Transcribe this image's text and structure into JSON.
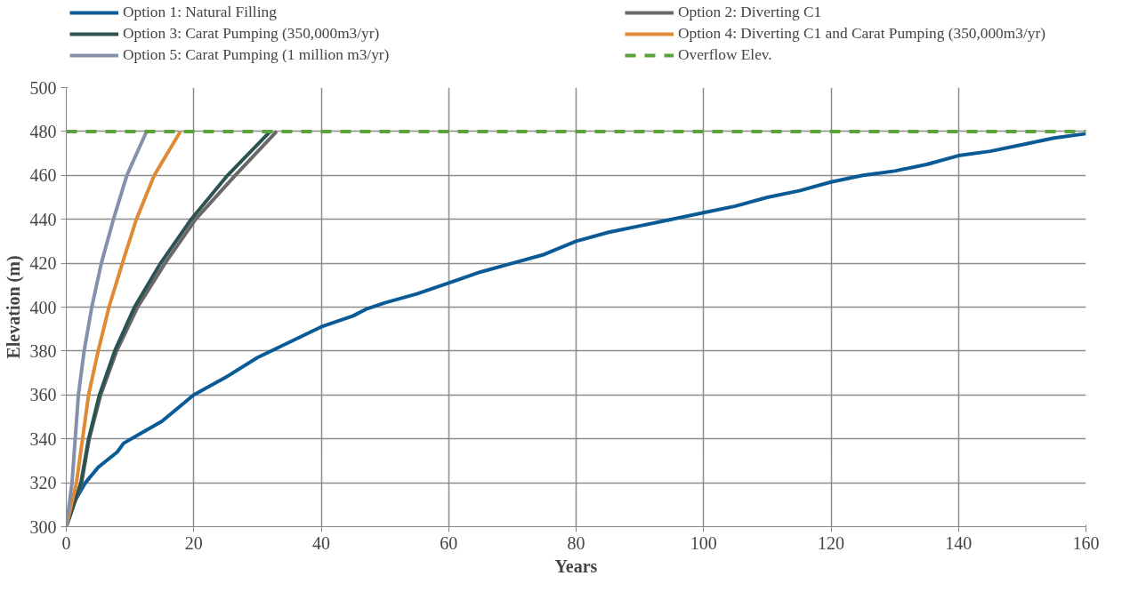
{
  "chart_data": {
    "type": "line",
    "xlabel": "Years",
    "ylabel": "Elevation (m)",
    "xlim": [
      0,
      160
    ],
    "ylim": [
      300,
      500
    ],
    "xticks": [
      0,
      20,
      40,
      60,
      80,
      100,
      120,
      140,
      160
    ],
    "yticks": [
      300,
      320,
      340,
      360,
      380,
      400,
      420,
      440,
      460,
      480,
      500
    ],
    "grid": true,
    "legend": "top",
    "series": [
      {
        "name": "Option 1: Natural Filling",
        "color": "#0a5a96",
        "x": [
          0,
          1,
          3,
          5,
          8,
          9,
          12,
          15,
          20,
          25,
          30,
          35,
          40,
          45,
          47,
          50,
          55,
          60,
          65,
          70,
          75,
          80,
          85,
          90,
          95,
          100,
          105,
          110,
          115,
          120,
          125,
          130,
          135,
          140,
          145,
          150,
          155,
          160
        ],
        "values": [
          300,
          310,
          320,
          327,
          334,
          338,
          343,
          348,
          360,
          368,
          377,
          384,
          391,
          396,
          399,
          402,
          406,
          411,
          416,
          420,
          424,
          430,
          434,
          437,
          440,
          443,
          446,
          450,
          453,
          457,
          460,
          462,
          465,
          469,
          471,
          474,
          477,
          479
        ]
      },
      {
        "name": "Option 2: Diverting C1",
        "color": "#6b6867",
        "x": [
          0,
          2.4,
          3.6,
          5.4,
          7.9,
          11.2,
          15.5,
          20.3,
          26.5,
          33
        ],
        "values": [
          300,
          320,
          340,
          360,
          380,
          400,
          420,
          440,
          460,
          480
        ]
      },
      {
        "name": "Option 3: Carat Pumping (350,000m3/yr)",
        "color": "#2a5351",
        "x": [
          0,
          2.3,
          3.5,
          5.2,
          7.6,
          10.7,
          14.8,
          19.6,
          25.3,
          32
        ],
        "values": [
          300,
          320,
          340,
          360,
          380,
          400,
          420,
          440,
          460,
          480
        ]
      },
      {
        "name": "Option 4: Diverting C1 and Carat Pumping (350,000m3/yr)",
        "color": "#df8a34",
        "x": [
          0,
          1.6,
          3.5,
          5,
          6.7,
          8.8,
          11,
          13.8,
          17.9
        ],
        "values": [
          300,
          320,
          360,
          380,
          400,
          420,
          440,
          460,
          480
        ]
      },
      {
        "name": "Option 5: Carat Pumping (1 million m3/yr)",
        "color": "#8591aa",
        "x": [
          0,
          0.9,
          1.9,
          2.8,
          4,
          5.5,
          7.4,
          9.5,
          12.6
        ],
        "values": [
          300,
          320,
          360,
          380,
          400,
          420,
          440,
          460,
          480
        ]
      },
      {
        "name": "Overflow Elev.",
        "color": "#5aa23a",
        "line_style": "dashed",
        "x": [
          0,
          160
        ],
        "values": [
          480,
          480
        ]
      }
    ]
  }
}
